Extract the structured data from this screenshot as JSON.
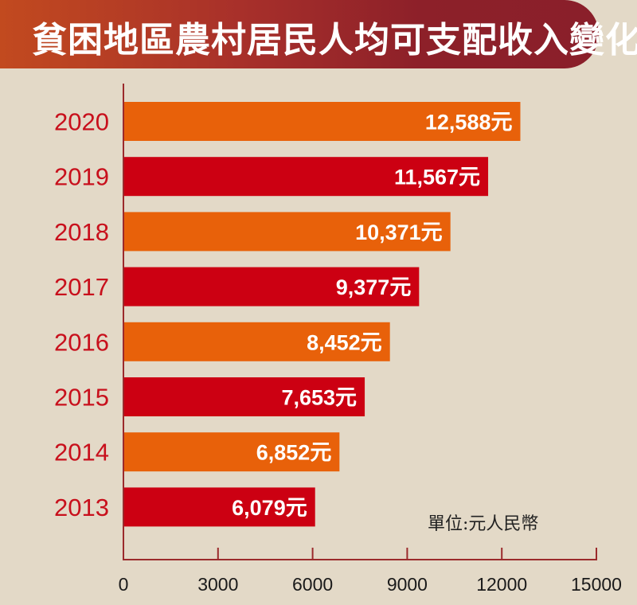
{
  "chart_data": {
    "type": "bar",
    "orientation": "horizontal",
    "title": "貧困地區農村居民人均可支配收入變化",
    "unit_label": "單位:元人民幣",
    "categories": [
      "2020",
      "2019",
      "2018",
      "2017",
      "2016",
      "2015",
      "2014",
      "2013"
    ],
    "values": [
      12588,
      11567,
      10371,
      9377,
      8452,
      7653,
      6852,
      6079
    ],
    "data_labels": [
      "12,588元",
      "11,567元",
      "10,371元",
      "9,377元",
      "8,452元",
      "7,653元",
      "6,852元",
      "6,079元"
    ],
    "bar_colors": [
      "#e8610a",
      "#cc0012"
    ],
    "xlim": [
      0,
      15000
    ],
    "xticks": [
      "0",
      "3000",
      "6000",
      "9000",
      "12000",
      "15000"
    ],
    "grid": false,
    "legend": "none"
  }
}
